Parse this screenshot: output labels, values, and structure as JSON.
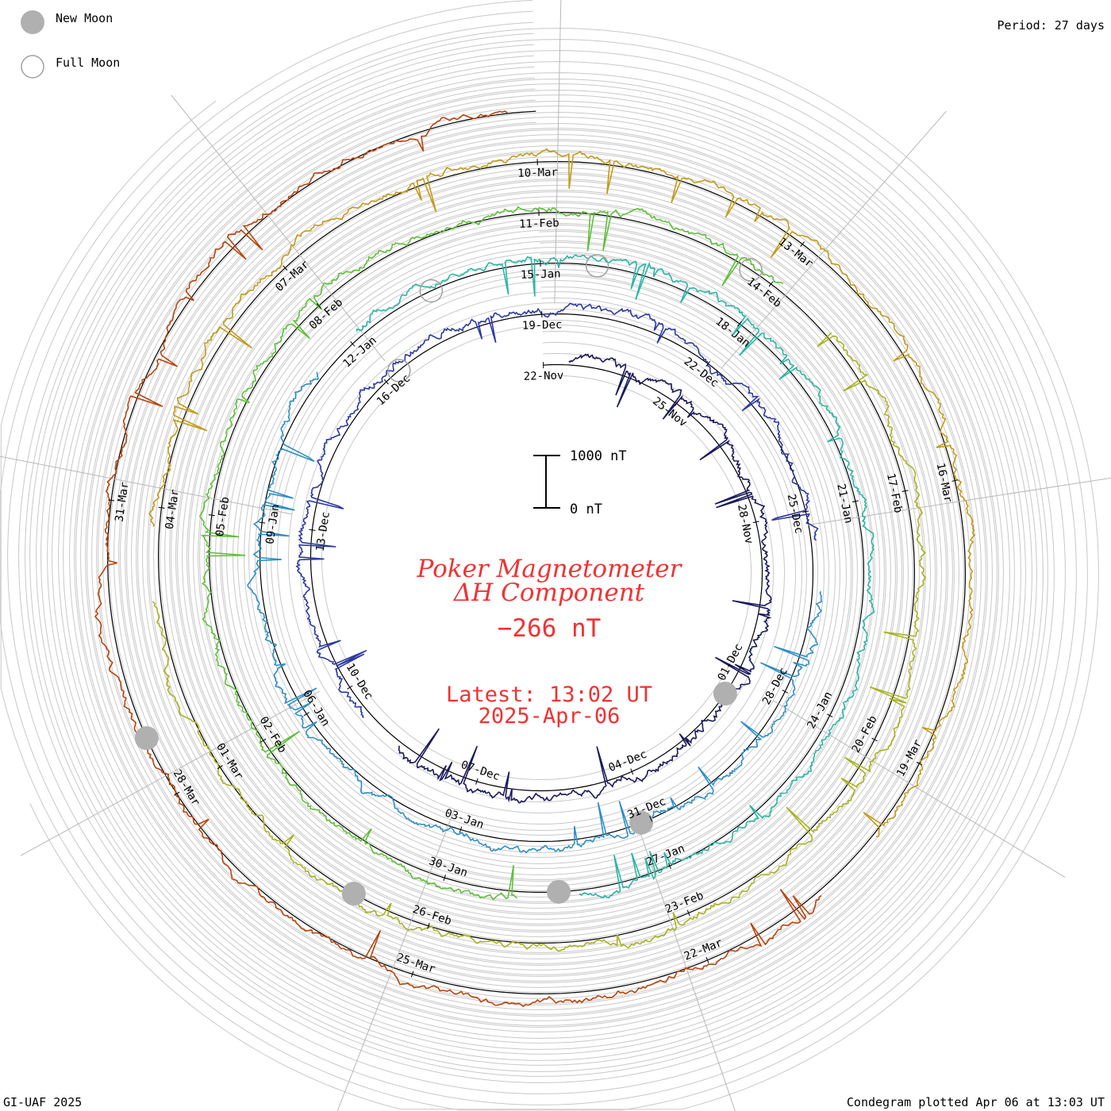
{
  "header": {
    "period": "Period: 27 days",
    "footer_left": "GI-UAF 2025",
    "footer_right": "Condegram plotted Apr 06 at 13:03 UT"
  },
  "legend": {
    "new_moon": "New Moon",
    "full_moon": "Full Moon",
    "new_moon_color": "#b0b0b0"
  },
  "center": {
    "title_line1": "Poker Magnetometer",
    "title_line2": "ΔH Component",
    "value": "−266 nT",
    "latest": "Latest: 13:02 UT",
    "date": "2025-Apr-06",
    "text_color": "#ee3333"
  },
  "scale_bar": {
    "top_label": "1000 nT",
    "bottom_label": "0 nT"
  },
  "chart_data": {
    "type": "line",
    "title": "Poker Magnetometer ΔH Component",
    "subtitle": "Period: 27 days",
    "unit": "nT",
    "scale_bar_nT": 1000,
    "latest_value_nT": -266,
    "rotation_colors": [
      "#1a1a5c",
      "#2c3aa0",
      "#2f8fc4",
      "#2bb5a3",
      "#5fbf3a",
      "#a8b320",
      "#c49a1a",
      "#b5450f"
    ],
    "date_labels": [
      {
        "text": "22-Nov",
        "rot": 0,
        "frac": 0.0
      },
      {
        "text": "25-Nov",
        "rot": 0,
        "frac": 0.111
      },
      {
        "text": "28-Nov",
        "rot": 0,
        "frac": 0.222
      },
      {
        "text": "01-Dec",
        "rot": 0,
        "frac": 0.333
      },
      {
        "text": "04-Dec",
        "rot": 0,
        "frac": 0.444
      },
      {
        "text": "07-Dec",
        "rot": 0,
        "frac": 0.556
      },
      {
        "text": "10-Dec",
        "rot": 0,
        "frac": 0.667
      },
      {
        "text": "13-Dec",
        "rot": 0,
        "frac": 0.778
      },
      {
        "text": "16-Dec",
        "rot": 0,
        "frac": 0.889
      },
      {
        "text": "19-Dec",
        "rot": 1,
        "frac": 0.0
      },
      {
        "text": "22-Dec",
        "rot": 1,
        "frac": 0.111
      },
      {
        "text": "25-Dec",
        "rot": 1,
        "frac": 0.222
      },
      {
        "text": "28-Dec",
        "rot": 1,
        "frac": 0.333
      },
      {
        "text": "31-Dec",
        "rot": 1,
        "frac": 0.444
      },
      {
        "text": "03-Jan",
        "rot": 1,
        "frac": 0.556
      },
      {
        "text": "06-Jan",
        "rot": 1,
        "frac": 0.667
      },
      {
        "text": "09-Jan",
        "rot": 1,
        "frac": 0.778
      },
      {
        "text": "12-Jan",
        "rot": 1,
        "frac": 0.889
      },
      {
        "text": "15-Jan",
        "rot": 2,
        "frac": 0.0
      },
      {
        "text": "18-Jan",
        "rot": 2,
        "frac": 0.111
      },
      {
        "text": "21-Jan",
        "rot": 2,
        "frac": 0.222
      },
      {
        "text": "24-Jan",
        "rot": 2,
        "frac": 0.333
      },
      {
        "text": "27-Jan",
        "rot": 2,
        "frac": 0.444
      },
      {
        "text": "30-Jan",
        "rot": 2,
        "frac": 0.556
      },
      {
        "text": "02-Feb",
        "rot": 2,
        "frac": 0.667
      },
      {
        "text": "05-Feb",
        "rot": 2,
        "frac": 0.778
      },
      {
        "text": "08-Feb",
        "rot": 2,
        "frac": 0.889
      },
      {
        "text": "11-Feb",
        "rot": 3,
        "frac": 0.0
      },
      {
        "text": "14-Feb",
        "rot": 3,
        "frac": 0.111
      },
      {
        "text": "17-Feb",
        "rot": 3,
        "frac": 0.222
      },
      {
        "text": "20-Feb",
        "rot": 3,
        "frac": 0.333
      },
      {
        "text": "23-Feb",
        "rot": 3,
        "frac": 0.444
      },
      {
        "text": "26-Feb",
        "rot": 3,
        "frac": 0.556
      },
      {
        "text": "01-Mar",
        "rot": 3,
        "frac": 0.667
      },
      {
        "text": "04-Mar",
        "rot": 3,
        "frac": 0.778
      },
      {
        "text": "07-Mar",
        "rot": 3,
        "frac": 0.889
      },
      {
        "text": "10-Mar",
        "rot": 4,
        "frac": 0.0
      },
      {
        "text": "13-Mar",
        "rot": 4,
        "frac": 0.111
      },
      {
        "text": "16-Mar",
        "rot": 4,
        "frac": 0.222
      },
      {
        "text": "19-Mar",
        "rot": 4,
        "frac": 0.333
      },
      {
        "text": "22-Mar",
        "rot": 4,
        "frac": 0.444
      },
      {
        "text": "25-Mar",
        "rot": 4,
        "frac": 0.556
      },
      {
        "text": "28-Mar",
        "rot": 4,
        "frac": 0.667
      },
      {
        "text": "31-Mar",
        "rot": 4,
        "frac": 0.778
      }
    ],
    "new_moons": [
      {
        "rot": 0,
        "frac": 0.355
      },
      {
        "rot": 1,
        "frac": 0.45
      },
      {
        "rot": 2,
        "frac": 0.5
      },
      {
        "rot": 3,
        "frac": 0.59
      },
      {
        "rot": 4,
        "frac": 0.69
      }
    ],
    "full_moons": [
      {
        "rot": 0,
        "frac": 0.9
      },
      {
        "rot": 1,
        "frac": 0.94
      },
      {
        "rot": 2,
        "frac": 0.03
      },
      {
        "rot": 3,
        "frac": 0.1
      }
    ]
  }
}
